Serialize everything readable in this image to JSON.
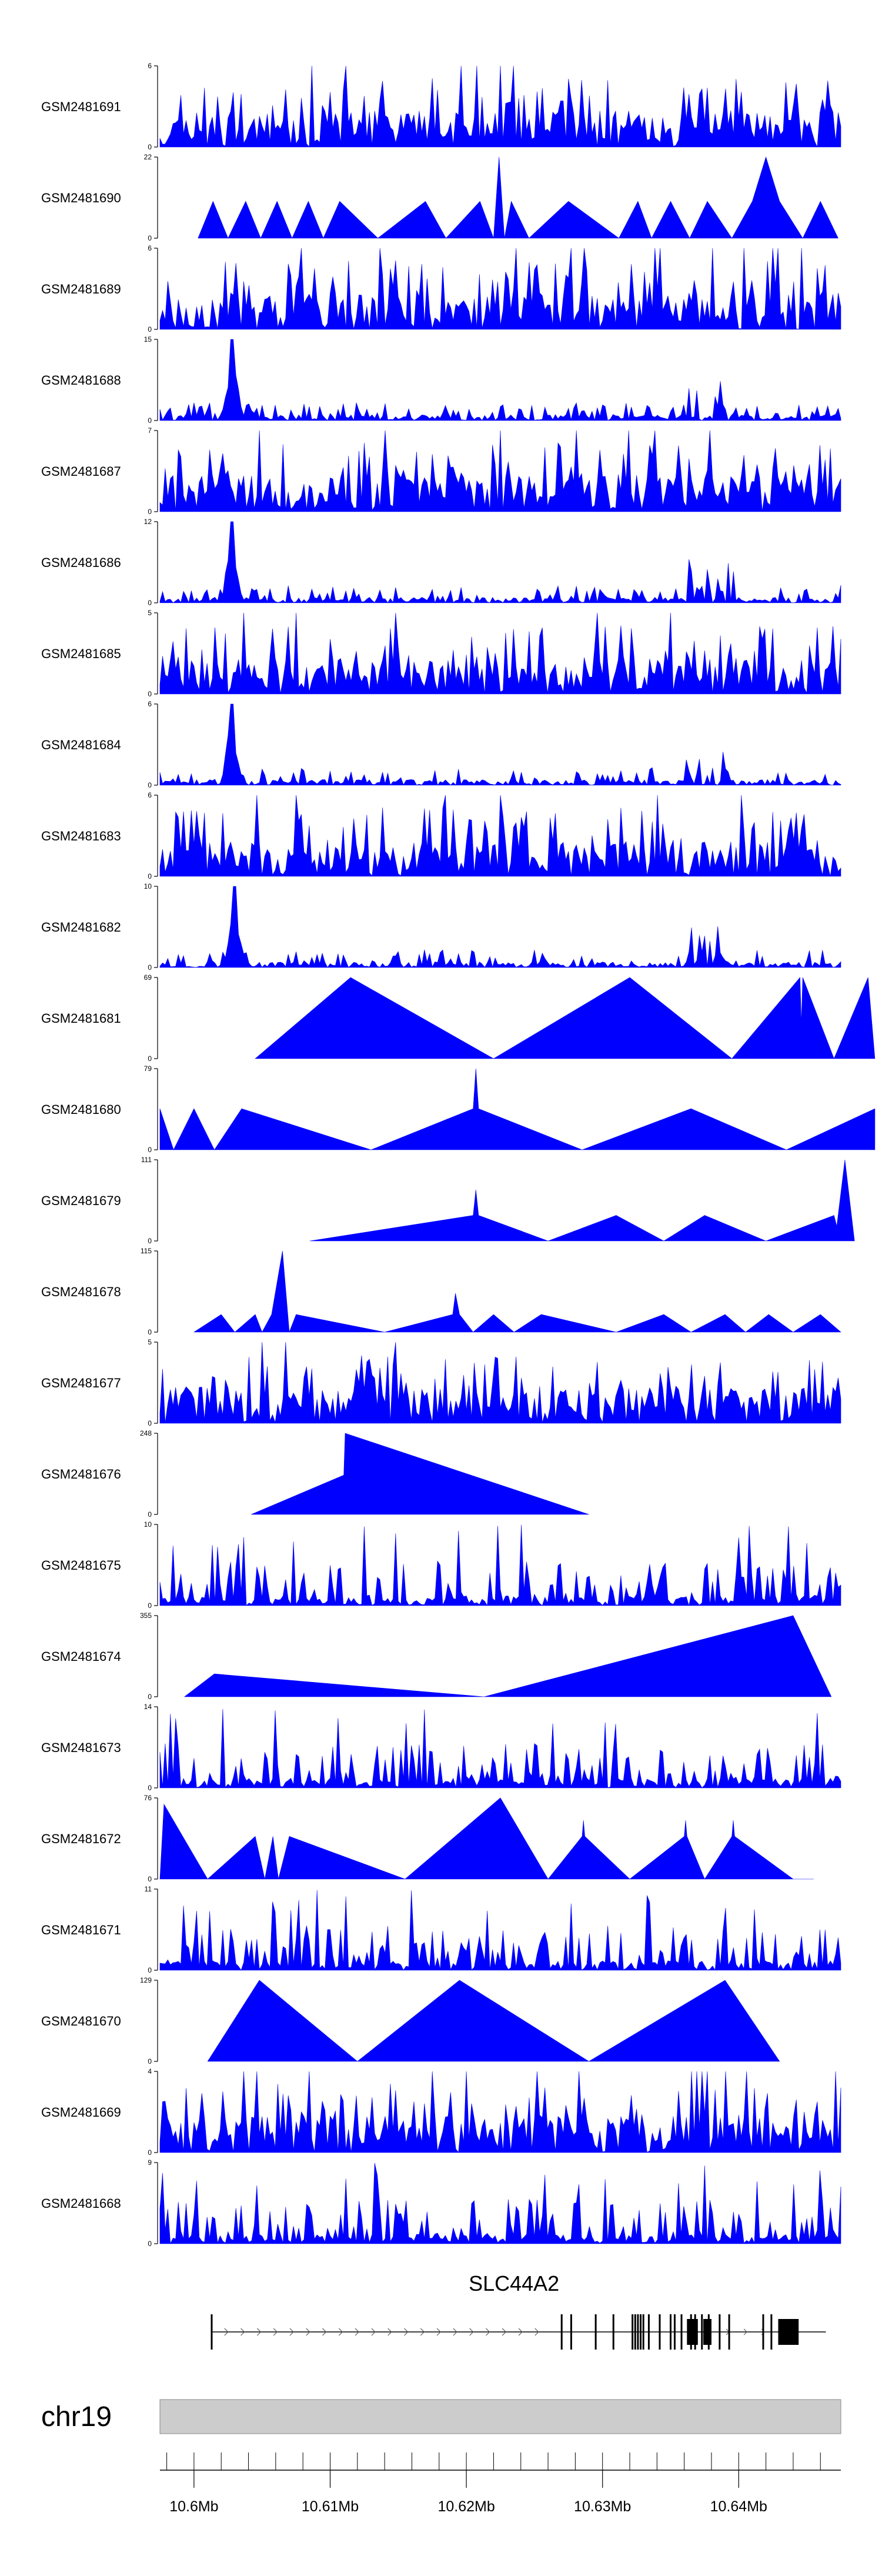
{
  "colors": {
    "track_fill": "#0000ff",
    "axis": "#000000",
    "gene": "#000000",
    "ideogram": "#cccccc",
    "ideogram_border": "#888888"
  },
  "chart_data": {
    "type": "area",
    "title": "",
    "xlabel": "",
    "ylabel": "",
    "genomic_range_mb": [
      10.5975,
      10.6475
    ],
    "tracks": [
      {
        "name": "GSM2481691",
        "ymax": 6,
        "ytick_top": "6",
        "ytick_bottom": "0",
        "style": "dense",
        "seed": 11
      },
      {
        "name": "GSM2481690",
        "ymax": 22,
        "ytick_top": "22",
        "ytick_bottom": "0",
        "style": "sparse",
        "points": [
          [
            10.6003,
            0
          ],
          [
            10.6014,
            10
          ],
          [
            10.6025,
            0
          ],
          [
            10.6038,
            10
          ],
          [
            10.6049,
            0
          ],
          [
            10.6061,
            10
          ],
          [
            10.6072,
            0
          ],
          [
            10.6084,
            10
          ],
          [
            10.6095,
            0
          ],
          [
            10.6107,
            10
          ],
          [
            10.6135,
            0
          ],
          [
            10.617,
            10
          ],
          [
            10.6185,
            0
          ],
          [
            10.621,
            10
          ],
          [
            10.622,
            0
          ],
          [
            10.6224,
            22
          ],
          [
            10.6228,
            0
          ],
          [
            10.6233,
            10
          ],
          [
            10.6246,
            0
          ],
          [
            10.6275,
            10
          ],
          [
            10.6312,
            0
          ],
          [
            10.6326,
            10
          ],
          [
            10.6336,
            0
          ],
          [
            10.635,
            10
          ],
          [
            10.6364,
            0
          ],
          [
            10.6377,
            10
          ],
          [
            10.6395,
            0
          ],
          [
            10.641,
            10
          ],
          [
            10.642,
            22
          ],
          [
            10.643,
            10
          ],
          [
            10.6447,
            0
          ],
          [
            10.646,
            10
          ],
          [
            10.6473,
            0
          ]
        ]
      },
      {
        "name": "GSM2481689",
        "ymax": 6,
        "ytick_top": "6",
        "ytick_bottom": "0",
        "style": "dense",
        "seed": 23
      },
      {
        "name": "GSM2481688",
        "ymax": 15,
        "ytick_top": "15",
        "ytick_bottom": "0",
        "style": "lowpeak",
        "seed": 37,
        "peak_mb": 10.6028,
        "peak_height": 15
      },
      {
        "name": "GSM2481687",
        "ymax": 7,
        "ytick_top": "7",
        "ytick_bottom": "0",
        "style": "dense",
        "seed": 41
      },
      {
        "name": "GSM2481686",
        "ymax": 12,
        "ytick_top": "12",
        "ytick_bottom": "0",
        "style": "lowpeak",
        "seed": 53,
        "peak_mb": 10.6028,
        "peak_height": 12
      },
      {
        "name": "GSM2481685",
        "ymax": 5,
        "ytick_top": "5",
        "ytick_bottom": "0",
        "style": "dense",
        "seed": 61
      },
      {
        "name": "GSM2481684",
        "ymax": 6,
        "ytick_top": "6",
        "ytick_bottom": "0",
        "style": "lowpeak",
        "seed": 71,
        "peak_mb": 10.6028,
        "peak_height": 6
      },
      {
        "name": "GSM2481683",
        "ymax": 6,
        "ytick_top": "6",
        "ytick_bottom": "0",
        "style": "dense",
        "seed": 83
      },
      {
        "name": "GSM2481682",
        "ymax": 10,
        "ytick_top": "10",
        "ytick_bottom": "0",
        "style": "lowpeak",
        "seed": 97,
        "peak_mb": 10.603,
        "peak_height": 10
      },
      {
        "name": "GSM2481681",
        "ymax": 69,
        "ytick_top": "69",
        "ytick_bottom": "0",
        "style": "sparse",
        "points": [
          [
            10.6045,
            0
          ],
          [
            10.6115,
            69
          ],
          [
            10.622,
            0
          ],
          [
            10.632,
            69
          ],
          [
            10.6395,
            0
          ],
          [
            10.6445,
            69
          ],
          [
            10.6446,
            30
          ],
          [
            10.6447,
            69
          ],
          [
            10.647,
            0
          ],
          [
            10.6495,
            69
          ],
          [
            10.65,
            0
          ]
        ]
      },
      {
        "name": "GSM2481680",
        "ymax": 79,
        "ytick_top": "79",
        "ytick_bottom": "0",
        "style": "sparse",
        "points": [
          [
            10.5975,
            40
          ],
          [
            10.5985,
            0
          ],
          [
            10.6,
            40
          ],
          [
            10.6015,
            0
          ],
          [
            10.6035,
            40
          ],
          [
            10.613,
            0
          ],
          [
            10.6205,
            40
          ],
          [
            10.6207,
            79
          ],
          [
            10.6209,
            40
          ],
          [
            10.6285,
            0
          ],
          [
            10.6365,
            40
          ],
          [
            10.6435,
            0
          ],
          [
            10.65,
            40
          ],
          [
            10.65,
            0
          ]
        ]
      },
      {
        "name": "GSM2481679",
        "ymax": 111,
        "ytick_top": "111",
        "ytick_bottom": "0",
        "style": "sparse",
        "points": [
          [
            10.6085,
            0
          ],
          [
            10.6205,
            35
          ],
          [
            10.6207,
            70
          ],
          [
            10.6209,
            35
          ],
          [
            10.626,
            0
          ],
          [
            10.631,
            35
          ],
          [
            10.6345,
            0
          ],
          [
            10.6375,
            35
          ],
          [
            10.642,
            0
          ],
          [
            10.647,
            35
          ],
          [
            10.6472,
            20
          ],
          [
            10.6478,
            111
          ],
          [
            10.6485,
            0
          ]
        ]
      },
      {
        "name": "GSM2481678",
        "ymax": 115,
        "ytick_top": "115",
        "ytick_bottom": "0",
        "style": "sparse",
        "points": [
          [
            10.6,
            0
          ],
          [
            10.602,
            25
          ],
          [
            10.603,
            0
          ],
          [
            10.6045,
            25
          ],
          [
            10.605,
            0
          ],
          [
            10.6057,
            25
          ],
          [
            10.6065,
            115
          ],
          [
            10.607,
            0
          ],
          [
            10.6075,
            25
          ],
          [
            10.614,
            0
          ],
          [
            10.619,
            25
          ],
          [
            10.6192,
            55
          ],
          [
            10.6195,
            25
          ],
          [
            10.6205,
            0
          ],
          [
            10.622,
            25
          ],
          [
            10.6235,
            0
          ],
          [
            10.6255,
            25
          ],
          [
            10.631,
            0
          ],
          [
            10.6345,
            25
          ],
          [
            10.6365,
            0
          ],
          [
            10.639,
            25
          ],
          [
            10.6405,
            0
          ],
          [
            10.6422,
            25
          ],
          [
            10.644,
            0
          ],
          [
            10.646,
            25
          ],
          [
            10.6475,
            0
          ]
        ]
      },
      {
        "name": "GSM2481677",
        "ymax": 5,
        "ytick_top": "5",
        "ytick_bottom": "0",
        "style": "dense",
        "seed": 103
      },
      {
        "name": "GSM2481676",
        "ymax": 248,
        "ytick_top": "248",
        "ytick_bottom": "0",
        "style": "sparse",
        "points": [
          [
            10.6042,
            0
          ],
          [
            10.611,
            120
          ],
          [
            10.6111,
            248
          ],
          [
            10.629,
            0
          ]
        ]
      },
      {
        "name": "GSM2481675",
        "ymax": 10,
        "ytick_top": "10",
        "ytick_bottom": "0",
        "style": "spiky",
        "seed": 113
      },
      {
        "name": "GSM2481674",
        "ymax": 355,
        "ytick_top": "355",
        "ytick_bottom": "0",
        "style": "sparse",
        "points": [
          [
            10.5993,
            0
          ],
          [
            10.6015,
            100
          ],
          [
            10.6213,
            0
          ],
          [
            10.644,
            355
          ],
          [
            10.6468,
            0
          ]
        ]
      },
      {
        "name": "GSM2481673",
        "ymax": 14,
        "ytick_top": "14",
        "ytick_bottom": "0",
        "style": "spiky",
        "seed": 127
      },
      {
        "name": "GSM2481672",
        "ymax": 76,
        "ytick_top": "76",
        "ytick_bottom": "0",
        "style": "sparse",
        "points": [
          [
            10.5975,
            0
          ],
          [
            10.5978,
            70
          ],
          [
            10.601,
            0
          ],
          [
            10.6045,
            40
          ],
          [
            10.6052,
            0
          ],
          [
            10.6058,
            40
          ],
          [
            10.6062,
            0
          ],
          [
            10.607,
            40
          ],
          [
            10.6155,
            0
          ],
          [
            10.6225,
            76
          ],
          [
            10.626,
            0
          ],
          [
            10.6285,
            40
          ],
          [
            10.6286,
            55
          ],
          [
            10.6287,
            40
          ],
          [
            10.632,
            0
          ],
          [
            10.636,
            40
          ],
          [
            10.6361,
            55
          ],
          [
            10.6362,
            40
          ],
          [
            10.6375,
            0
          ],
          [
            10.6395,
            40
          ],
          [
            10.6396,
            55
          ],
          [
            10.6397,
            40
          ],
          [
            10.644,
            0
          ],
          [
            10.6455,
            0
          ]
        ]
      },
      {
        "name": "GSM2481671",
        "ymax": 11,
        "ytick_top": "11",
        "ytick_bottom": "0",
        "style": "spiky",
        "seed": 131
      },
      {
        "name": "GSM2481670",
        "ymax": 129,
        "ytick_top": "129",
        "ytick_bottom": "0",
        "style": "sparse",
        "points": [
          [
            10.601,
            0
          ],
          [
            10.6048,
            129
          ],
          [
            10.612,
            0
          ],
          [
            10.6195,
            129
          ],
          [
            10.629,
            0
          ],
          [
            10.639,
            129
          ],
          [
            10.643,
            0
          ]
        ]
      },
      {
        "name": "GSM2481669",
        "ymax": 4,
        "ytick_top": "4",
        "ytick_bottom": "0",
        "style": "dense",
        "seed": 139
      },
      {
        "name": "GSM2481668",
        "ymax": 9,
        "ytick_top": "9",
        "ytick_bottom": "0",
        "style": "spiky",
        "seed": 149
      }
    ],
    "gene": {
      "name": "SLC44A2",
      "start_mb": 10.6013,
      "end_mb": 10.6464,
      "exons_mb": [
        10.6013,
        10.627,
        10.6277,
        10.6295,
        10.6308,
        10.6322,
        10.6324,
        10.6326,
        10.6328,
        10.633,
        10.6334,
        10.6342,
        10.635,
        10.6353,
        10.6358,
        10.6365,
        10.6368,
        10.6373,
        10.6378,
        10.6386,
        10.6393,
        10.6418,
        10.6424
      ],
      "big_exon_mb": [
        10.6429,
        10.6444
      ]
    },
    "chromosome": "chr19",
    "axis": {
      "ticks": [
        {
          "mb": 10.6,
          "label": "10.6Mb"
        },
        {
          "mb": 10.61,
          "label": "10.61Mb"
        },
        {
          "mb": 10.62,
          "label": "10.62Mb"
        },
        {
          "mb": 10.63,
          "label": "10.63Mb"
        },
        {
          "mb": 10.64,
          "label": "10.64Mb"
        }
      ],
      "minor_step_mb": 0.002
    }
  }
}
